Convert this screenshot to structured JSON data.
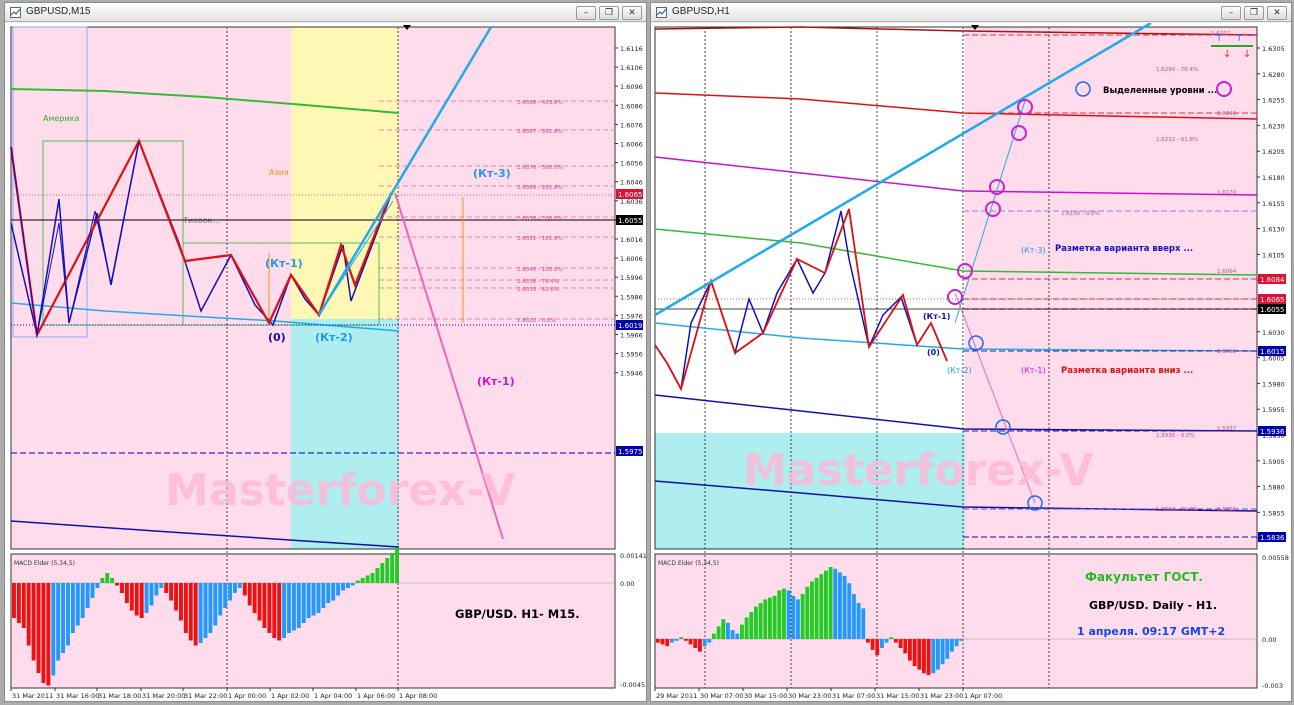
{
  "windows": [
    {
      "id": "left",
      "title": "GBPUSD,M15",
      "buttons": [
        "–",
        "❐",
        "✕"
      ],
      "y_ticks": [
        "1.6116",
        "1.6106",
        "1.6096",
        "1.6086",
        "1.6076",
        "1.6066",
        "1.6056",
        "1.6046",
        "1.6036",
        "1.6026",
        "1.6016",
        "1.6006",
        "1.5996",
        "1.5986",
        "1.5976",
        "1.5966",
        "1.5956",
        "1.5946"
      ],
      "price_badges": [
        {
          "text": "1.6065",
          "color": "#dd1133"
        },
        {
          "text": "1.6055",
          "color": "#000000"
        },
        {
          "text": "1.6019",
          "color": "#0000aa"
        },
        {
          "text": "1.5975",
          "color": "#0000aa"
        }
      ],
      "fib_labels": [
        "1.6098 - 423.6%",
        "1.6087 - 361.8%",
        "1.6076 - 300.0%",
        "1.6069 - 261.8%",
        "1.6058 - 200.0%",
        "1.6051 - 161.8%",
        "1.6040 - 100.0%",
        "1.6036 - 76.4%",
        "1.6033 - 61.8%",
        "1.6022 - 0.0%"
      ],
      "session_labels": {
        "america": "Америка",
        "asia": "Азия",
        "tokyo": "Тихоок..."
      },
      "wave_labels": {
        "kt1": "(Кт-1)",
        "zero": "(0)",
        "kt2": "(Кт-2)",
        "kt3": "(Кт-3)",
        "kt1_target": "(Кт-1)"
      },
      "watermark": "Masterforex-V",
      "macd_title": "MACD Elder (5,34,5)",
      "macd_ticks": [
        "0.00141",
        "0.00",
        "-0.00453"
      ],
      "caption": "GBP/USD.  H1- M15.",
      "x_ticks": [
        "31 Mar 2011",
        "31 Mar 16:00",
        "31 Mar 18:00",
        "31 Mar 20:00",
        "31 Mar 22:00",
        "1 Apr 00:00",
        "1 Apr 02:00",
        "1 Apr 04:00",
        "1 Apr 06:00",
        "1 Apr 08:00"
      ],
      "colors": {
        "bg": "#ffdcec",
        "asia_zone": "#fff8b4",
        "lower_zone": "#aeeeee",
        "up_bar": "#22cc22",
        "down_bar": "#ee1111",
        "mid_bar": "#2299ff"
      }
    },
    {
      "id": "right",
      "title": "GBPUSD,H1",
      "buttons": [
        "–",
        "❐",
        "✕"
      ],
      "y_ticks": [
        "1.6305",
        "1.6280",
        "1.6255",
        "1.6230",
        "1.6205",
        "1.6180",
        "1.6155",
        "1.6130",
        "1.6105",
        "1.6080",
        "1.6055",
        "1.6030",
        "1.6005",
        "1.5980",
        "1.5955",
        "1.5930",
        "1.5905",
        "1.5880",
        "1.5855",
        "1.5830"
      ],
      "price_badges": [
        {
          "text": "1.6084",
          "color": "#dd1133"
        },
        {
          "text": "1.6065",
          "color": "#dd1133"
        },
        {
          "text": "1.6055",
          "color": "#000000"
        },
        {
          "text": "1.6015",
          "color": "#0000aa"
        },
        {
          "text": "1.5936",
          "color": "#0000aa"
        },
        {
          "text": "1.5836",
          "color": "#0000aa"
        }
      ],
      "fib_labels": [
        "1.6322",
        "1.6290 - 76.4%",
        "1.6246",
        "1.6222 - 61.8%",
        "1.6170",
        "1.6150 - 0.0%",
        "1.6094",
        "1.6018",
        "1.5937",
        "1.5936 - 0.0%",
        "1.5864 - 61.8%",
        "1.5866"
      ],
      "annotations": {
        "highlighted": "Выделенные уровни ...",
        "up_variant": "Разметка варианта вверх ...",
        "down_variant": "Разметка варианта вниз ..."
      },
      "wave_labels": {
        "kt3": "(Кт-3)",
        "kt1": "(Кт-1)",
        "zero": "(0)",
        "kt2": "(Кт-2)",
        "kt1_down": "(Кт-1)"
      },
      "watermark": "Masterforex-V",
      "macd_title": "MACD Elder (5,34,5)",
      "macd_ticks": [
        "0.00558",
        "0.00",
        "-0.003"
      ],
      "captions": [
        "Факультет ГОСТ.",
        "GBP/USD. Daily - H1.",
        "1 апреля. 09:17 GMT+2"
      ],
      "x_ticks": [
        "29 Mar 2011",
        "30 Mar 07:00",
        "30 Mar 15:00",
        "30 Mar 23:00",
        "31 Mar 07:00",
        "31 Mar 15:00",
        "31 Mar 23:00",
        "1 Apr 07:00"
      ],
      "colors": {
        "bg": "#ffdcec",
        "white_zone": "#ffffff",
        "lower_zone": "#aeeeee"
      }
    }
  ]
}
